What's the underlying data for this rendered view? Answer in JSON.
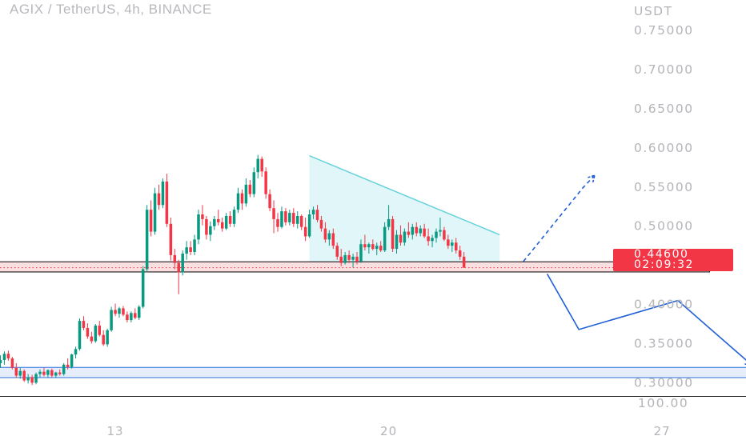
{
  "title": "AGIX / TetherUS, 4h, BINANCE",
  "price_tag": {
    "price": "0.44600",
    "countdown": "02:09:32"
  },
  "chart_data": {
    "type": "candlestick",
    "symbol": "AGIX / TetherUS",
    "timeframe": "4h",
    "exchange": "BINANCE",
    "y_unit_label": "USDT",
    "y_ticks": [
      "0.75000",
      "0.70000",
      "0.65000",
      "0.60000",
      "0.55000",
      "0.50000",
      "0.40000",
      "0.35000",
      "0.30000"
    ],
    "scale_label": "100.00",
    "x_ticks": [
      {
        "label": "13",
        "candle": 29
      },
      {
        "label": "20",
        "candle": 98
      },
      {
        "label": "27",
        "candle": 167
      }
    ],
    "ylim": [
      0.282,
      0.788
    ],
    "current_price": 0.446,
    "ohlc": [
      [
        0.324,
        0.334,
        0.318,
        0.328
      ],
      [
        0.328,
        0.339,
        0.322,
        0.336
      ],
      [
        0.336,
        0.34,
        0.327,
        0.33
      ],
      [
        0.33,
        0.332,
        0.316,
        0.318
      ],
      [
        0.318,
        0.324,
        0.305,
        0.308
      ],
      [
        0.308,
        0.318,
        0.304,
        0.314
      ],
      [
        0.314,
        0.316,
        0.3,
        0.302
      ],
      [
        0.302,
        0.31,
        0.298,
        0.306
      ],
      [
        0.306,
        0.309,
        0.296,
        0.299
      ],
      [
        0.299,
        0.312,
        0.297,
        0.31
      ],
      [
        0.31,
        0.316,
        0.306,
        0.313
      ],
      [
        0.313,
        0.318,
        0.307,
        0.309
      ],
      [
        0.309,
        0.316,
        0.305,
        0.315
      ],
      [
        0.315,
        0.317,
        0.306,
        0.308
      ],
      [
        0.308,
        0.313,
        0.305,
        0.312
      ],
      [
        0.312,
        0.316,
        0.308,
        0.31
      ],
      [
        0.31,
        0.324,
        0.308,
        0.322
      ],
      [
        0.322,
        0.33,
        0.316,
        0.319
      ],
      [
        0.319,
        0.336,
        0.317,
        0.335
      ],
      [
        0.335,
        0.345,
        0.33,
        0.342
      ],
      [
        0.342,
        0.381,
        0.34,
        0.378
      ],
      [
        0.378,
        0.384,
        0.366,
        0.369
      ],
      [
        0.369,
        0.375,
        0.355,
        0.358
      ],
      [
        0.358,
        0.364,
        0.349,
        0.352
      ],
      [
        0.352,
        0.374,
        0.35,
        0.372
      ],
      [
        0.372,
        0.378,
        0.358,
        0.36
      ],
      [
        0.36,
        0.366,
        0.346,
        0.348
      ],
      [
        0.348,
        0.368,
        0.345,
        0.366
      ],
      [
        0.366,
        0.396,
        0.364,
        0.392
      ],
      [
        0.392,
        0.4,
        0.384,
        0.387
      ],
      [
        0.387,
        0.396,
        0.382,
        0.394
      ],
      [
        0.394,
        0.397,
        0.384,
        0.386
      ],
      [
        0.386,
        0.39,
        0.376,
        0.379
      ],
      [
        0.379,
        0.39,
        0.376,
        0.388
      ],
      [
        0.388,
        0.394,
        0.38,
        0.382
      ],
      [
        0.382,
        0.398,
        0.379,
        0.396
      ],
      [
        0.396,
        0.448,
        0.394,
        0.444
      ],
      [
        0.444,
        0.526,
        0.44,
        0.52
      ],
      [
        0.52,
        0.532,
        0.486,
        0.492
      ],
      [
        0.492,
        0.548,
        0.488,
        0.541
      ],
      [
        0.541,
        0.552,
        0.52,
        0.526
      ],
      [
        0.526,
        0.56,
        0.522,
        0.556
      ],
      [
        0.556,
        0.566,
        0.498,
        0.502
      ],
      [
        0.502,
        0.51,
        0.455,
        0.462
      ],
      [
        0.462,
        0.47,
        0.444,
        0.452
      ],
      [
        0.452,
        0.456,
        0.412,
        0.44
      ],
      [
        0.44,
        0.468,
        0.436,
        0.464
      ],
      [
        0.464,
        0.48,
        0.456,
        0.472
      ],
      [
        0.472,
        0.48,
        0.462,
        0.466
      ],
      [
        0.466,
        0.488,
        0.462,
        0.482
      ],
      [
        0.482,
        0.52,
        0.476,
        0.514
      ],
      [
        0.514,
        0.526,
        0.5,
        0.508
      ],
      [
        0.508,
        0.512,
        0.482,
        0.488
      ],
      [
        0.488,
        0.505,
        0.48,
        0.499
      ],
      [
        0.499,
        0.512,
        0.494,
        0.508
      ],
      [
        0.508,
        0.52,
        0.5,
        0.504
      ],
      [
        0.504,
        0.51,
        0.492,
        0.496
      ],
      [
        0.496,
        0.516,
        0.494,
        0.512
      ],
      [
        0.512,
        0.518,
        0.498,
        0.502
      ],
      [
        0.502,
        0.524,
        0.498,
        0.52
      ],
      [
        0.52,
        0.548,
        0.516,
        0.541
      ],
      [
        0.541,
        0.546,
        0.52,
        0.528
      ],
      [
        0.528,
        0.56,
        0.524,
        0.552
      ],
      [
        0.552,
        0.558,
        0.536,
        0.54
      ],
      [
        0.54,
        0.574,
        0.536,
        0.568
      ],
      [
        0.568,
        0.59,
        0.56,
        0.585
      ],
      [
        0.585,
        0.588,
        0.562,
        0.569
      ],
      [
        0.569,
        0.574,
        0.534,
        0.54
      ],
      [
        0.54,
        0.546,
        0.518,
        0.522
      ],
      [
        0.522,
        0.532,
        0.49,
        0.508
      ],
      [
        0.508,
        0.516,
        0.492,
        0.498
      ],
      [
        0.498,
        0.524,
        0.496,
        0.518
      ],
      [
        0.518,
        0.522,
        0.5,
        0.504
      ],
      [
        0.504,
        0.52,
        0.5,
        0.516
      ],
      [
        0.516,
        0.522,
        0.498,
        0.502
      ],
      [
        0.502,
        0.518,
        0.496,
        0.512
      ],
      [
        0.512,
        0.514,
        0.494,
        0.498
      ],
      [
        0.498,
        0.51,
        0.48,
        0.486
      ],
      [
        0.486,
        0.52,
        0.484,
        0.514
      ],
      [
        0.514,
        0.524,
        0.508,
        0.52
      ],
      [
        0.52,
        0.526,
        0.504,
        0.507
      ],
      [
        0.507,
        0.512,
        0.492,
        0.496
      ],
      [
        0.496,
        0.504,
        0.478,
        0.482
      ],
      [
        0.482,
        0.494,
        0.474,
        0.49
      ],
      [
        0.49,
        0.496,
        0.47,
        0.474
      ],
      [
        0.474,
        0.478,
        0.456,
        0.46
      ],
      [
        0.46,
        0.47,
        0.448,
        0.452
      ],
      [
        0.452,
        0.466,
        0.45,
        0.462
      ],
      [
        0.462,
        0.468,
        0.452,
        0.456
      ],
      [
        0.456,
        0.464,
        0.446,
        0.46
      ],
      [
        0.46,
        0.466,
        0.45,
        0.454
      ],
      [
        0.454,
        0.482,
        0.452,
        0.476
      ],
      [
        0.476,
        0.488,
        0.468,
        0.472
      ],
      [
        0.472,
        0.478,
        0.464,
        0.476
      ],
      [
        0.476,
        0.482,
        0.468,
        0.47
      ],
      [
        0.47,
        0.478,
        0.462,
        0.474
      ],
      [
        0.474,
        0.48,
        0.466,
        0.468
      ],
      [
        0.468,
        0.504,
        0.466,
        0.498
      ],
      [
        0.498,
        0.526,
        0.494,
        0.508
      ],
      [
        0.508,
        0.512,
        0.466,
        0.47
      ],
      [
        0.47,
        0.494,
        0.464,
        0.488
      ],
      [
        0.488,
        0.5,
        0.474,
        0.478
      ],
      [
        0.478,
        0.496,
        0.474,
        0.492
      ],
      [
        0.492,
        0.504,
        0.484,
        0.488
      ],
      [
        0.488,
        0.502,
        0.482,
        0.498
      ],
      [
        0.498,
        0.504,
        0.486,
        0.49
      ],
      [
        0.49,
        0.5,
        0.486,
        0.496
      ],
      [
        0.496,
        0.502,
        0.484,
        0.486
      ],
      [
        0.486,
        0.496,
        0.474,
        0.48
      ],
      [
        0.48,
        0.488,
        0.472,
        0.484
      ],
      [
        0.484,
        0.496,
        0.478,
        0.492
      ],
      [
        0.492,
        0.51,
        0.486,
        0.494
      ],
      [
        0.494,
        0.498,
        0.48,
        0.482
      ],
      [
        0.482,
        0.488,
        0.47,
        0.474
      ],
      [
        0.474,
        0.482,
        0.466,
        0.478
      ],
      [
        0.478,
        0.484,
        0.464,
        0.468
      ],
      [
        0.468,
        0.474,
        0.456,
        0.46
      ],
      [
        0.46,
        0.466,
        0.446,
        0.446
      ]
    ],
    "annotations": {
      "descending_triangle": {
        "top_line": [
          [
            78,
            0.589
          ],
          [
            126,
            0.488
          ]
        ],
        "bottom_line": [
          [
            78,
            0.4535
          ],
          [
            126,
            0.4535
          ]
        ]
      },
      "support_zone": {
        "x": [
          0,
          179
        ],
        "y": [
          0.4405,
          0.4535
        ]
      },
      "target_zone": {
        "x": [
          0,
          197
        ],
        "y": [
          0.3055,
          0.3185
        ]
      },
      "bull_scenario_path": [
        [
          132,
          0.454
        ],
        [
          147,
          0.548
        ],
        [
          150,
          0.564
        ]
      ],
      "bear_scenario_path": [
        [
          138,
          0.438
        ],
        [
          146,
          0.367
        ],
        [
          171,
          0.404
        ],
        [
          190,
          0.32
        ]
      ]
    },
    "colors": {
      "up": "#089981",
      "down": "#f23645",
      "trendline": "#66d2d9",
      "triangle_fill": "#e0f6f8",
      "support_fill": "#fbdfe1",
      "target_fill": "#e6eefc",
      "target_border": "#4a84e0",
      "scenario": "#1f5fd6",
      "price_tag": "#f23645"
    }
  }
}
